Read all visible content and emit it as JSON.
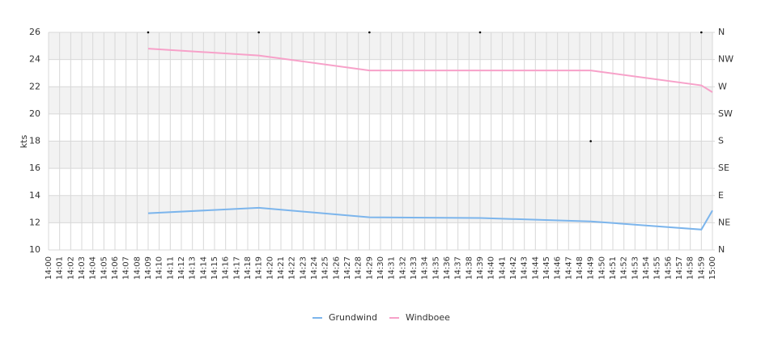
{
  "chart_data": {
    "type": "line",
    "y_label": "kts",
    "categories": [
      "14:00",
      "14:01",
      "14:02",
      "14:03",
      "14:04",
      "14:05",
      "14:06",
      "14:07",
      "14:08",
      "14:09",
      "14:10",
      "14:11",
      "14:12",
      "14:13",
      "14:14",
      "14:15",
      "14:16",
      "14:17",
      "14:18",
      "14:19",
      "14:20",
      "14:21",
      "14:22",
      "14:23",
      "14:24",
      "14:25",
      "14:26",
      "14:27",
      "14:28",
      "14:29",
      "14:30",
      "14:31",
      "14:32",
      "14:33",
      "14:34",
      "14:35",
      "14:36",
      "14:37",
      "14:38",
      "14:39",
      "14:40",
      "14:41",
      "14:42",
      "14:43",
      "14:44",
      "14:45",
      "14:46",
      "14:47",
      "14:48",
      "14:49",
      "14:50",
      "14:51",
      "14:52",
      "14:53",
      "14:54",
      "14:55",
      "14:56",
      "14:57",
      "14:58",
      "14:59",
      "15:00"
    ],
    "series": [
      {
        "name": "Grundwind",
        "color": "#7cb5ec",
        "x": [
          "14:09",
          "14:19",
          "14:29",
          "14:39",
          "14:49",
          "14:59",
          "15:00"
        ],
        "values": [
          12.7,
          13.1,
          12.4,
          12.35,
          12.1,
          11.5,
          12.9
        ]
      },
      {
        "name": "Windboee",
        "color": "#f7a1c9",
        "x": [
          "14:09",
          "14:19",
          "14:29",
          "14:39",
          "14:49",
          "14:59",
          "15:00"
        ],
        "values": [
          24.8,
          24.3,
          23.2,
          23.2,
          23.2,
          22.1,
          21.6
        ]
      }
    ],
    "direction": {
      "color": "#000000",
      "axis": "y2",
      "x": [
        "14:09",
        "14:19",
        "14:29",
        "14:39",
        "14:49",
        "14:59"
      ],
      "values": [
        360,
        360,
        360,
        360,
        180,
        360
      ]
    },
    "ylim": [
      10,
      26
    ],
    "yticks": [
      10,
      12,
      14,
      16,
      18,
      20,
      22,
      24,
      26
    ],
    "y2lim": [
      0,
      360
    ],
    "y2ticks": [
      {
        "value": 0,
        "label": "N"
      },
      {
        "value": 45,
        "label": "NE"
      },
      {
        "value": 90,
        "label": "E"
      },
      {
        "value": 135,
        "label": "SE"
      },
      {
        "value": 180,
        "label": "S"
      },
      {
        "value": 225,
        "label": "SW"
      },
      {
        "value": 270,
        "label": "W"
      },
      {
        "value": 315,
        "label": "NW"
      },
      {
        "value": 360,
        "label": "N"
      }
    ],
    "grid": true,
    "bands": true,
    "legend": "bottom"
  }
}
